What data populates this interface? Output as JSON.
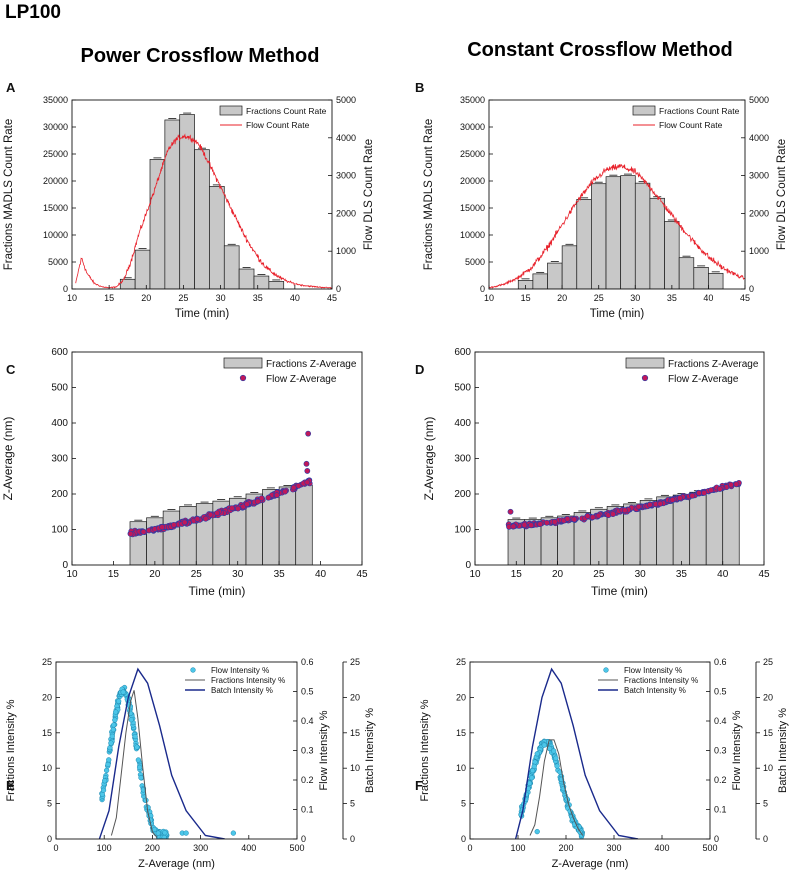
{
  "figure": {
    "title": "LP100",
    "column_titles": [
      "Power Crossflow Method",
      "Constant Crossflow Method"
    ]
  },
  "colors": {
    "bar_fill": "#c8c8c8",
    "bar_stroke": "#1a1a1a",
    "flow_line": "#e8202a",
    "flow_point": "#c0185a",
    "flow_point_edge": "#2a3ea8",
    "flow_intensity_fill": "#4cc6e8",
    "flow_intensity_edge": "#1e88b0",
    "fractions_line": "#555555",
    "batch_line": "#1a2a8c"
  },
  "chart_data": [
    {
      "id": "A",
      "type": "bar+line",
      "xlabel": "Time (min)",
      "ylabel": "Fractions MADLS Count Rate",
      "y2label": "Flow DLS Count Rate",
      "xlim": [
        10,
        45
      ],
      "ylim": [
        0,
        35000
      ],
      "y2lim": [
        0,
        5000
      ],
      "xticks": [
        10,
        15,
        20,
        25,
        30,
        35,
        40,
        45
      ],
      "yticks": [
        0,
        5000,
        10000,
        15000,
        20000,
        25000,
        30000,
        35000
      ],
      "y2ticks": [
        0,
        1000,
        2000,
        3000,
        4000,
        5000
      ],
      "legend": [
        "Fractions Count Rate",
        "Flow Count Rate"
      ],
      "bars": {
        "x": [
          17.5,
          19.5,
          21.5,
          23.5,
          25.5,
          27.5,
          29.5,
          31.5,
          33.5,
          35.5,
          37.5
        ],
        "width": 2,
        "values": [
          1800,
          7200,
          24000,
          31300,
          32300,
          25800,
          19000,
          8000,
          3700,
          2400,
          1400
        ]
      },
      "flow": {
        "x": [
          10.5,
          11.0,
          11.3,
          12.0,
          13.0,
          14.0,
          15.0,
          16.0,
          17.0,
          18.0,
          19.0,
          20.0,
          21.0,
          22.0,
          23.0,
          24.0,
          25.0,
          26.0,
          27.0,
          28.0,
          29.0,
          30.0,
          31.0,
          32.0,
          33.0,
          34.0,
          35.0,
          36.0,
          37.0,
          38.0,
          39.0,
          40.0,
          41.0,
          42.0,
          43.0,
          44.0,
          45.0
        ],
        "y": [
          150,
          600,
          820,
          420,
          150,
          60,
          30,
          60,
          250,
          780,
          1450,
          2000,
          2550,
          3150,
          3700,
          3950,
          4050,
          4000,
          3850,
          3500,
          3100,
          2700,
          2300,
          1900,
          1500,
          1150,
          850,
          600,
          430,
          300,
          200,
          140,
          100,
          75,
          55,
          40,
          30
        ],
        "noise": 110
      }
    },
    {
      "id": "B",
      "type": "bar+line",
      "xlabel": "Time (min)",
      "ylabel": "Fractions MADLS Count Rate",
      "y2label": "Flow DLS Count Rate",
      "xlim": [
        10,
        45
      ],
      "ylim": [
        0,
        35000
      ],
      "y2lim": [
        0,
        5000
      ],
      "xticks": [
        10,
        15,
        20,
        25,
        30,
        35,
        40,
        45
      ],
      "yticks": [
        0,
        5000,
        10000,
        15000,
        20000,
        25000,
        30000,
        35000
      ],
      "y2ticks": [
        0,
        1000,
        2000,
        3000,
        4000,
        5000
      ],
      "legend": [
        "Fractions Count Rate",
        "Flow Count Rate"
      ],
      "bars": {
        "x": [
          15,
          17,
          19,
          21,
          23,
          25,
          27,
          29,
          31,
          33,
          35,
          37,
          39,
          41
        ],
        "width": 2,
        "values": [
          1600,
          2800,
          4800,
          8000,
          16600,
          19500,
          20800,
          21000,
          19600,
          16800,
          12500,
          5800,
          4000,
          2900
        ]
      },
      "flow": {
        "x": [
          10,
          12,
          14,
          16,
          18,
          20,
          22,
          24,
          26,
          28,
          30,
          32,
          34,
          36,
          38,
          40,
          42,
          44,
          45
        ],
        "y": [
          30,
          120,
          300,
          600,
          1100,
          1700,
          2300,
          2800,
          3150,
          3250,
          3100,
          2700,
          2200,
          1700,
          1250,
          850,
          550,
          350,
          280
        ],
        "noise": 120
      }
    },
    {
      "id": "C",
      "type": "bar+scatter",
      "xlabel": "Time (min)",
      "ylabel": "Z-Average (nm)",
      "xlim": [
        10,
        45
      ],
      "ylim": [
        0,
        600
      ],
      "xticks": [
        10,
        15,
        20,
        25,
        30,
        35,
        40,
        45
      ],
      "yticks": [
        0,
        100,
        200,
        300,
        400,
        500,
        600
      ],
      "legend": [
        "Fractions Z-Average",
        "Flow Z-Average"
      ],
      "bars": {
        "x": [
          18,
          20,
          22,
          24,
          26,
          28,
          30,
          32,
          34,
          36,
          38
        ],
        "width": 2,
        "values": [
          122,
          133,
          152,
          165,
          173,
          180,
          188,
          200,
          213,
          220,
          225
        ]
      },
      "flow": {
        "x_start": 17,
        "x_end": 38.7,
        "y_start": 90,
        "y_end": 235,
        "curve": 1.35,
        "n": 220,
        "noise": 7,
        "outliers": [
          {
            "x": 38.5,
            "y": 370
          },
          {
            "x": 38.3,
            "y": 285
          },
          {
            "x": 38.4,
            "y": 265
          }
        ]
      }
    },
    {
      "id": "D",
      "type": "bar+scatter",
      "xlabel": "Time (min)",
      "ylabel": "Z-Average (nm)",
      "xlim": [
        10,
        45
      ],
      "ylim": [
        0,
        600
      ],
      "xticks": [
        10,
        15,
        20,
        25,
        30,
        35,
        40,
        45
      ],
      "yticks": [
        0,
        100,
        200,
        300,
        400,
        500,
        600
      ],
      "legend": [
        "Fractions Z-Average",
        "Flow Z-Average"
      ],
      "bars": {
        "x": [
          15,
          17,
          19,
          21,
          23,
          25,
          27,
          29,
          31,
          33,
          35,
          37,
          39,
          41
        ],
        "width": 2,
        "values": [
          128,
          128,
          133,
          138,
          148,
          157,
          165,
          172,
          182,
          192,
          197,
          205,
          212,
          222
        ]
      },
      "flow": {
        "x_start": 14,
        "x_end": 42,
        "y_start": 110,
        "y_end": 232,
        "curve": 1.5,
        "n": 240,
        "noise": 6,
        "outliers": [
          {
            "x": 14.3,
            "y": 150
          }
        ]
      }
    },
    {
      "id": "E",
      "type": "scatter+line",
      "xlabel": "Z-Average (nm)",
      "ylabel": "Fractions Intensity %",
      "y2label": "Flow Intensity %",
      "y3label": "Batch Intensity %",
      "xlim": [
        0,
        500
      ],
      "ylim": [
        0,
        25
      ],
      "y2lim": [
        0,
        0.6
      ],
      "y3lim": [
        0,
        25
      ],
      "xticks": [
        0,
        100,
        200,
        300,
        400,
        500
      ],
      "yticks": [
        0,
        5,
        10,
        15,
        20,
        25
      ],
      "y2ticks": [
        0,
        0.1,
        0.2,
        0.3,
        0.4,
        0.5,
        0.6
      ],
      "y3ticks": [
        0,
        5,
        10,
        15,
        20,
        25
      ],
      "legend": [
        "Flow Intensity %",
        "Fractions Intensity %",
        "Batch Intensity %"
      ],
      "fractions": {
        "x": [
          115,
          125,
          135,
          145,
          155,
          162,
          170,
          180,
          190,
          200,
          210
        ],
        "y": [
          0.5,
          3,
          9,
          15,
          19.5,
          21,
          17,
          10,
          4,
          1,
          0.2
        ]
      },
      "batch": {
        "x": [
          90,
          110,
          130,
          150,
          170,
          190,
          215,
          240,
          270,
          310,
          350
        ],
        "y": [
          0,
          4,
          13,
          20,
          24,
          22,
          16,
          9,
          4,
          0.5,
          0
        ]
      },
      "flow": {
        "mu": 140,
        "sigma": 28,
        "x_start": 95,
        "x_end": 230,
        "peak": 0.5,
        "n": 210,
        "noise": 0.025,
        "outliers": [
          {
            "x": 262,
            "y": 0.02
          },
          {
            "x": 270,
            "y": 0.02
          },
          {
            "x": 368,
            "y": 0.02
          }
        ]
      }
    },
    {
      "id": "F",
      "type": "scatter+line",
      "xlabel": "Z-Average (nm)",
      "ylabel": "Fractions Intensity %",
      "y2label": "Flow Intensity %",
      "y3label": "Batch Intensity %",
      "xlim": [
        0,
        500
      ],
      "ylim": [
        0,
        25
      ],
      "y2lim": [
        0,
        0.6
      ],
      "y3lim": [
        0,
        25
      ],
      "xticks": [
        0,
        100,
        200,
        300,
        400,
        500
      ],
      "yticks": [
        0,
        5,
        10,
        15,
        20,
        25
      ],
      "y2ticks": [
        0,
        0.1,
        0.2,
        0.3,
        0.4,
        0.5,
        0.6
      ],
      "y3ticks": [
        0,
        5,
        10,
        15,
        20,
        25
      ],
      "legend": [
        "Flow Intensity %",
        "Fractions Intensity %",
        "Batch Intensity %"
      ],
      "fractions": {
        "x": [
          125,
          135,
          145,
          155,
          165,
          175,
          185,
          195,
          205,
          215,
          225,
          235
        ],
        "y": [
          0.5,
          2,
          6,
          11,
          14,
          14,
          12,
          8,
          5,
          3,
          1.5,
          0.5
        ]
      },
      "batch": {
        "x": [
          95,
          110,
          130,
          150,
          170,
          190,
          215,
          240,
          270,
          310,
          350
        ],
        "y": [
          0,
          4,
          13,
          20,
          24,
          22,
          16,
          9,
          4,
          0.5,
          0
        ]
      },
      "flow": {
        "mu": 158,
        "sigma": 32,
        "x_start": 105,
        "x_end": 235,
        "peak": 0.33,
        "n": 190,
        "noise": 0.02,
        "outliers": [
          {
            "x": 140,
            "y": 0.025
          }
        ]
      }
    }
  ]
}
